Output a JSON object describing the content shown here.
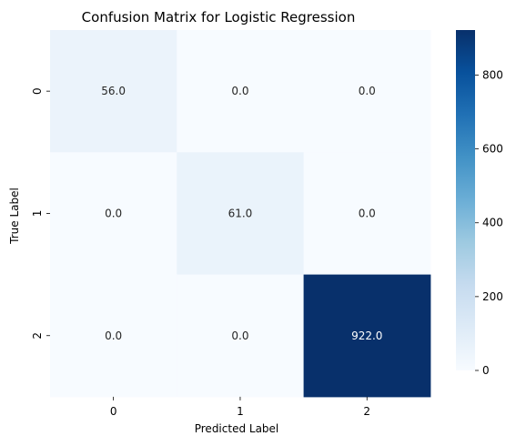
{
  "chart_data": {
    "type": "heatmap",
    "title": "Confusion Matrix for Logistic Regression",
    "xlabel": "Predicted Label",
    "ylabel": "True Label",
    "x_categories": [
      "0",
      "1",
      "2"
    ],
    "y_categories": [
      "0",
      "1",
      "2"
    ],
    "values": [
      [
        56.0,
        0.0,
        0.0
      ],
      [
        0.0,
        61.0,
        0.0
      ],
      [
        0.0,
        0.0,
        922.0
      ]
    ],
    "value_labels": [
      [
        "56.0",
        "0.0",
        "0.0"
      ],
      [
        "0.0",
        "61.0",
        "0.0"
      ],
      [
        "0.0",
        "0.0",
        "922.0"
      ]
    ],
    "colormap": "Blues",
    "color_range": [
      0,
      922
    ],
    "colorbar_ticks": [
      "0",
      "200",
      "400",
      "600",
      "800"
    ],
    "colorbar_tick_values": [
      0,
      200,
      400,
      600,
      800
    ]
  }
}
